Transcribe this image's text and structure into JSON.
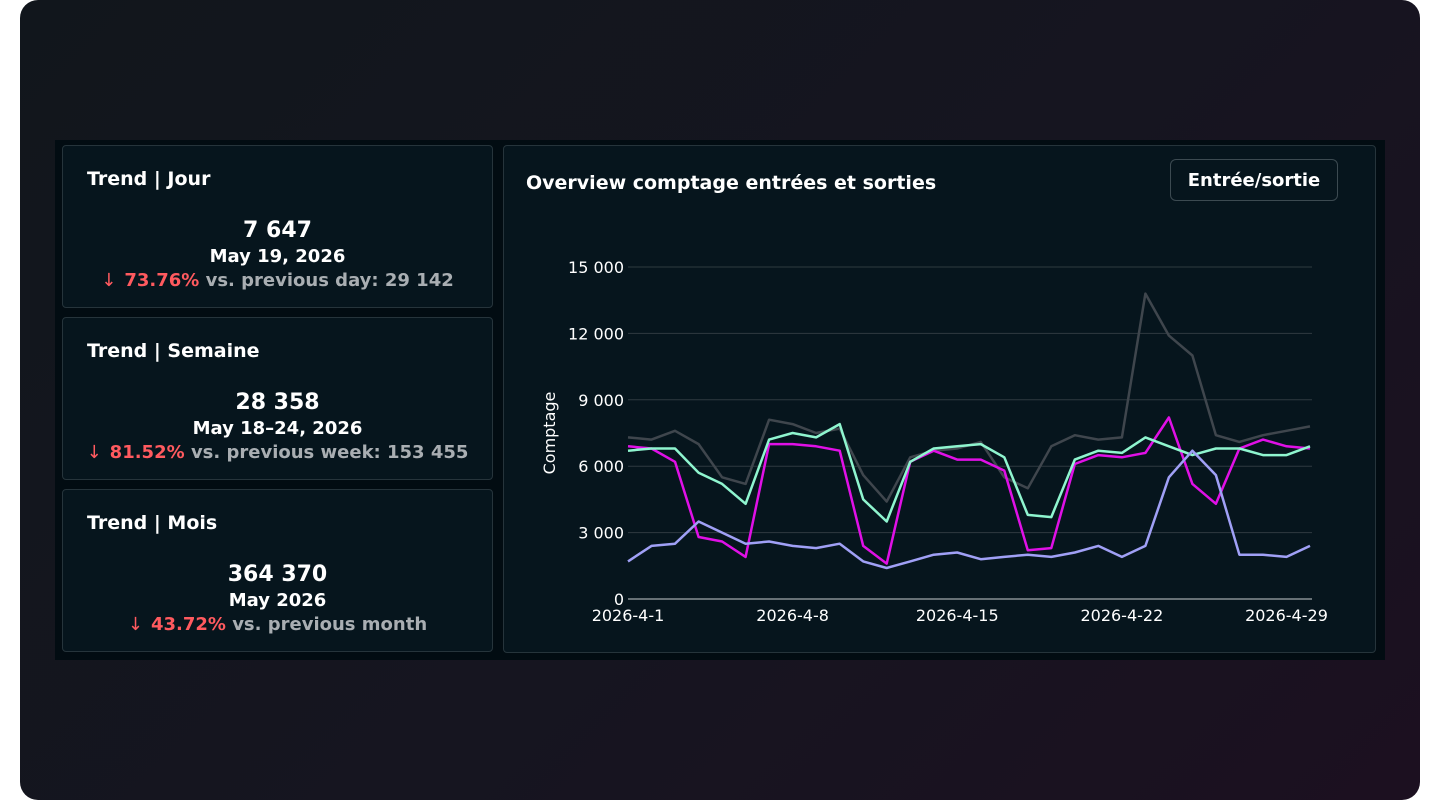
{
  "trends": [
    {
      "title": "Trend | Jour",
      "value": "7 647",
      "period": "May 19, 2026",
      "arrow": "↓",
      "pct": "73.76%",
      "comparison": "vs. previous day: 29 142"
    },
    {
      "title": "Trend | Semaine",
      "value": "28 358",
      "period": "May 18–24, 2026",
      "arrow": "↓",
      "pct": "81.52%",
      "comparison": "vs. previous week: 153 455"
    },
    {
      "title": "Trend | Mois",
      "value": "364 370",
      "period": "May 2026",
      "arrow": "↓",
      "pct": "43.72%",
      "comparison": "vs. previous month"
    }
  ],
  "chart": {
    "title": "Overview comptage entrées et sorties",
    "toggle_label": "Entrée/sortie"
  },
  "colors": {
    "negative": "#ff5a5f",
    "gray": "#3f464d",
    "magenta": "#e010e6",
    "mint": "#8ff5cf",
    "lavender": "#a0a0f6"
  },
  "chart_data": {
    "type": "line",
    "title": "Overview comptage entrées et sorties",
    "xlabel": "",
    "ylabel": "Comptage",
    "ylim": [
      0,
      15000
    ],
    "yticks": [
      "0",
      "3 000",
      "6 000",
      "9 000",
      "12 000",
      "15 000"
    ],
    "yticks_values": [
      0,
      3000,
      6000,
      9000,
      12000,
      15000
    ],
    "xtick_labels": [
      "2026-4-1",
      "2026-4-8",
      "2026-4-15",
      "2026-4-22",
      "2026-4-29"
    ],
    "xtick_days": [
      1,
      8,
      15,
      22,
      29
    ],
    "x": [
      1,
      2,
      3,
      4,
      5,
      6,
      7,
      8,
      9,
      10,
      11,
      12,
      13,
      14,
      15,
      16,
      17,
      18,
      19,
      20,
      21,
      22,
      23,
      24,
      25,
      26,
      27,
      28,
      29,
      30
    ],
    "grid": true,
    "series": [
      {
        "color": "#3f464d",
        "values": [
          7300,
          7200,
          7600,
          7000,
          5500,
          5200,
          8100,
          7900,
          7500,
          7700,
          5600,
          4400,
          6400,
          6700,
          6800,
          7100,
          5500,
          5000,
          6900,
          7400,
          7200,
          7300,
          13800,
          11900,
          11000,
          7400,
          7100,
          7400,
          7600,
          7800
        ]
      },
      {
        "color": "#e010e6",
        "values": [
          6900,
          6800,
          6200,
          2800,
          2600,
          1900,
          7000,
          7000,
          6900,
          6700,
          2400,
          1600,
          6200,
          6700,
          6300,
          6300,
          5800,
          2200,
          2300,
          6100,
          6500,
          6400,
          6600,
          8200,
          5200,
          4300,
          6800,
          7200,
          6900,
          6800
        ]
      },
      {
        "color": "#8ff5cf",
        "values": [
          6700,
          6800,
          6800,
          5700,
          5200,
          4300,
          7200,
          7500,
          7300,
          7900,
          4500,
          3500,
          6200,
          6800,
          6900,
          7000,
          6400,
          3800,
          3700,
          6300,
          6700,
          6600,
          7300,
          6900,
          6500,
          6800,
          6800,
          6500,
          6500,
          6900
        ]
      },
      {
        "color": "#a0a0f6",
        "values": [
          1700,
          2400,
          2500,
          3500,
          3000,
          2500,
          2600,
          2400,
          2300,
          2500,
          1700,
          1400,
          1700,
          2000,
          2100,
          1800,
          1900,
          2000,
          1900,
          2100,
          2400,
          1900,
          2400,
          5500,
          6700,
          5600,
          2000,
          2000,
          1900,
          2400
        ]
      }
    ]
  }
}
